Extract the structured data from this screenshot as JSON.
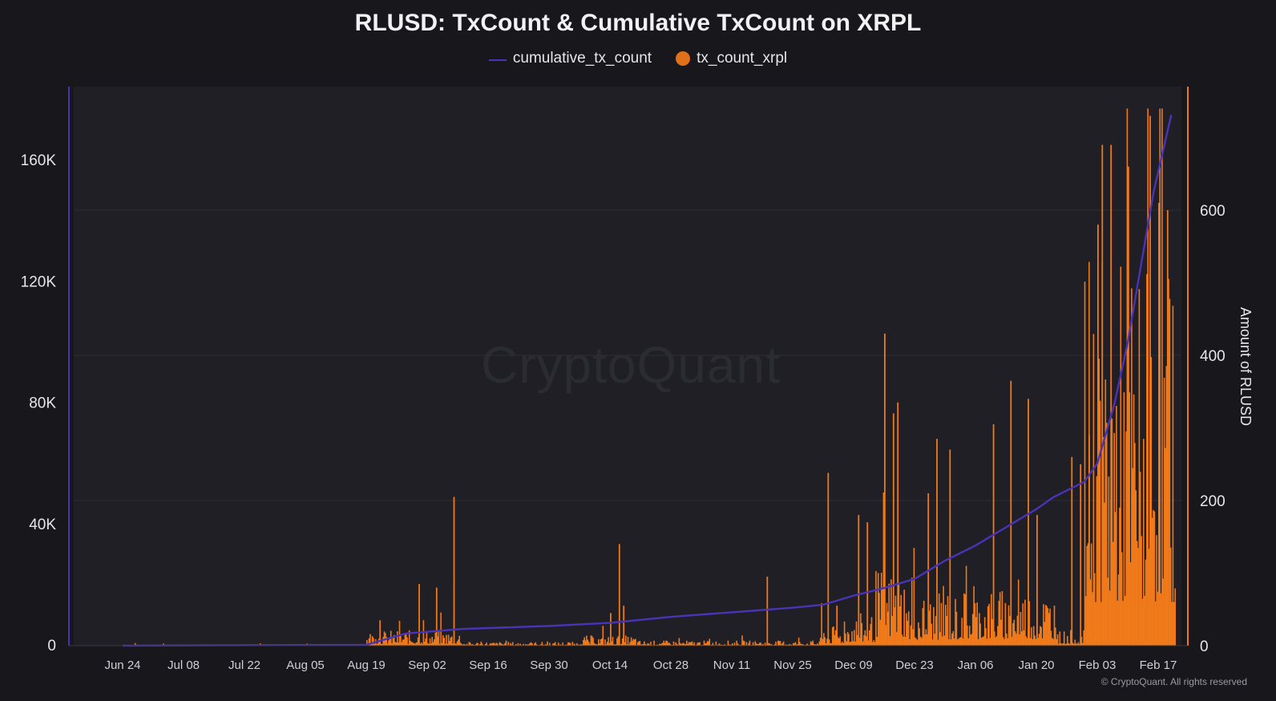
{
  "chart_data": {
    "type": "bar",
    "title": "RLUSD: TxCount & Cumulative TxCount on XRPL",
    "legend": {
      "position": "top-center"
    },
    "colors": {
      "line": "#4b33b8",
      "bars": "#f07a1a",
      "background": "#17171c",
      "plot": "#1f1f25",
      "grid": "#2d2d34"
    },
    "x_ticks": [
      "Jun 24",
      "Jul 08",
      "Jul 22",
      "Aug 05",
      "Aug 19",
      "Sep 02",
      "Sep 16",
      "Sep 30",
      "Oct 14",
      "Oct 28",
      "Nov 11",
      "Nov 25",
      "Dec 09",
      "Dec 23",
      "Jan 06",
      "Jan 20",
      "Feb 03",
      "Feb 17"
    ],
    "y_left": {
      "ticks": [
        "0",
        "40K",
        "80K",
        "120K",
        "160K"
      ],
      "ylim": [
        0,
        160000
      ]
    },
    "y_right": {
      "label": "Amount of RLUSD",
      "ticks": [
        "0",
        "200",
        "400",
        "600"
      ],
      "ylim": [
        0,
        600
      ]
    },
    "series": [
      {
        "name": "cumulative_tx_count",
        "type": "line",
        "points": [
          [
            "Jun 24",
            0
          ],
          [
            "Aug 19",
            300
          ],
          [
            "Aug 28",
            4000
          ],
          [
            "Sep 10",
            5500
          ],
          [
            "Sep 30",
            6500
          ],
          [
            "Oct 14",
            7500
          ],
          [
            "Oct 28",
            9500
          ],
          [
            "Nov 11",
            11000
          ],
          [
            "Nov 25",
            12500
          ],
          [
            "Dec 02",
            13500
          ],
          [
            "Dec 09",
            16500
          ],
          [
            "Dec 16",
            19000
          ],
          [
            "Dec 23",
            22000
          ],
          [
            "Dec 30",
            28000
          ],
          [
            "Jan 06",
            33000
          ],
          [
            "Jan 13",
            39000
          ],
          [
            "Jan 20",
            45000
          ],
          [
            "Jan 24",
            49000
          ],
          [
            "Jan 31",
            54000
          ],
          [
            "Feb 03",
            60000
          ],
          [
            "Feb 07",
            80000
          ],
          [
            "Feb 10",
            100000
          ],
          [
            "Feb 13",
            125000
          ],
          [
            "Feb 16",
            150000
          ],
          [
            "Feb 20",
            175000
          ]
        ]
      },
      {
        "name": "tx_count_xrpl",
        "type": "bar",
        "segments": [
          {
            "start": "Jun 24",
            "end": "Aug 19",
            "typical": 1,
            "peaks": []
          },
          {
            "start": "Aug 19",
            "end": "Sep 10",
            "typical": 12,
            "peaks": [
              [
                "Sep 08",
                205
              ],
              [
                "Aug 31",
                85
              ],
              [
                "Sep 04",
                80
              ],
              [
                "Aug 22",
                35
              ]
            ]
          },
          {
            "start": "Sep 10",
            "end": "Oct 07",
            "typical": 3,
            "peaks": []
          },
          {
            "start": "Oct 07",
            "end": "Oct 20",
            "typical": 8,
            "peaks": [
              [
                "Oct 16",
                140
              ],
              [
                "Oct 17",
                55
              ],
              [
                "Oct 14",
                45
              ]
            ]
          },
          {
            "start": "Oct 20",
            "end": "Dec 01",
            "typical": 4,
            "peaks": [
              [
                "Nov 19",
                95
              ]
            ]
          },
          {
            "start": "Dec 01",
            "end": "Dec 07",
            "typical": 15,
            "peaks": [
              [
                "Dec 03",
                238
              ],
              [
                "Dec 05",
                55
              ]
            ]
          },
          {
            "start": "Dec 07",
            "end": "Dec 14",
            "typical": 25,
            "peaks": [
              [
                "Dec 10",
                180
              ],
              [
                "Dec 12",
                170
              ]
            ]
          },
          {
            "start": "Dec 14",
            "end": "Dec 21",
            "typical": 60,
            "peaks": [
              [
                "Dec 16",
                430
              ],
              [
                "Dec 19",
                335
              ],
              [
                "Dec 18",
                320
              ]
            ]
          },
          {
            "start": "Dec 21",
            "end": "Jan 03",
            "typical": 40,
            "peaks": [
              [
                "Dec 28",
                285
              ],
              [
                "Dec 31",
                270
              ],
              [
                "Dec 26",
                210
              ]
            ]
          },
          {
            "start": "Jan 03",
            "end": "Jan 25",
            "typical": 45,
            "peaks": [
              [
                "Jan 14",
                365
              ],
              [
                "Jan 18",
                340
              ],
              [
                "Jan 10",
                305
              ],
              [
                "Jan 20",
                180
              ]
            ]
          },
          {
            "start": "Jan 25",
            "end": "Jan 31",
            "typical": 12,
            "peaks": [
              [
                "Jan 28",
                260
              ],
              [
                "Jan 30",
                250
              ]
            ]
          },
          {
            "start": "Jan 31",
            "end": "Feb 21",
            "typical": 300,
            "peaks": [
              [
                "Feb 01",
                290
              ],
              [
                "Feb 03",
                580
              ],
              [
                "Feb 04",
                690
              ],
              [
                "Feb 06",
                690
              ],
              [
                "Feb 10",
                660
              ],
              [
                "Feb 15",
                730
              ],
              [
                "Feb 17",
                610
              ],
              [
                "Feb 19",
                600
              ]
            ]
          }
        ]
      }
    ]
  },
  "watermark": "CryptoQuant",
  "copyright": "© CryptoQuant. All rights reserved"
}
